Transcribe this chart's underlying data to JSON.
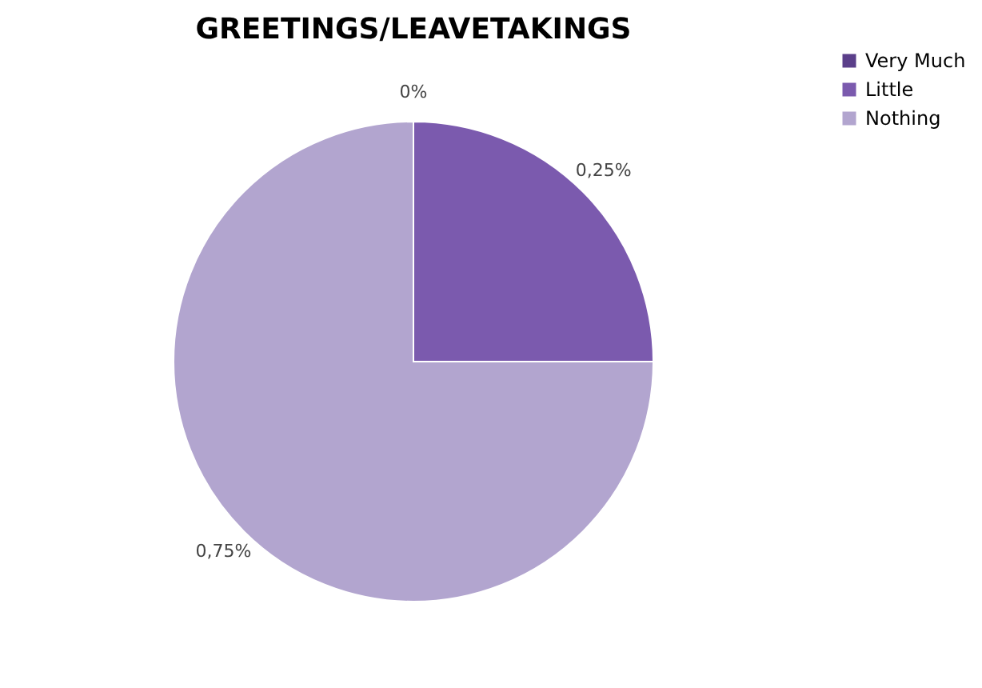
{
  "chart_data": {
    "type": "pie",
    "title": "GREETINGS/LEAVETAKINGS",
    "categories": [
      "Very Much",
      "Little",
      "Nothing"
    ],
    "values": [
      0,
      0.25,
      0.75
    ],
    "value_labels": [
      "0%",
      "0,25%",
      "0,75%"
    ],
    "colors": [
      "#5b3f8a",
      "#7b5aae",
      "#b2a5cf"
    ],
    "legend": "right"
  }
}
